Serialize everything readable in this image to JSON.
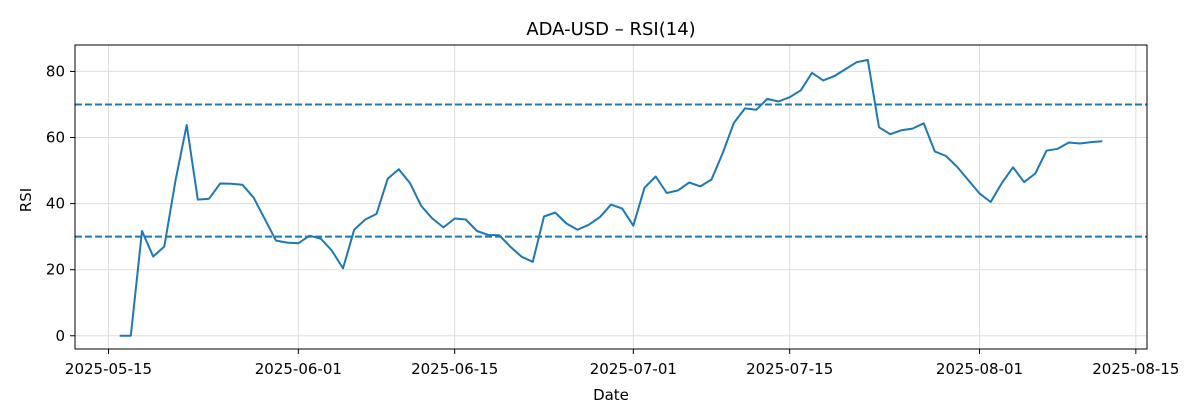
{
  "chart_data": {
    "type": "line",
    "title": "ADA-USD – RSI(14)",
    "xlabel": "Date",
    "ylabel": "RSI",
    "xlim": [
      "2025-05-12",
      "2025-08-16"
    ],
    "ylim": [
      -4,
      88
    ],
    "x_ticks": [
      "2025-05-15",
      "2025-06-01",
      "2025-06-15",
      "2025-07-01",
      "2025-07-15",
      "2025-08-01",
      "2025-08-15"
    ],
    "y_ticks": [
      0,
      20,
      40,
      60,
      80
    ],
    "grid": true,
    "reference_lines": [
      {
        "y": 70,
        "style": "dashed",
        "color": "#1f77b4"
      },
      {
        "y": 30,
        "style": "dashed",
        "color": "#1f77b4"
      }
    ],
    "series": [
      {
        "color": "#1f77b4",
        "x": [
          "2025-05-16",
          "2025-05-17",
          "2025-05-18",
          "2025-05-19",
          "2025-05-20",
          "2025-05-21",
          "2025-05-22",
          "2025-05-23",
          "2025-05-24",
          "2025-05-25",
          "2025-05-26",
          "2025-05-27",
          "2025-05-28",
          "2025-05-29",
          "2025-05-30",
          "2025-05-31",
          "2025-06-01",
          "2025-06-02",
          "2025-06-03",
          "2025-06-04",
          "2025-06-05",
          "2025-06-06",
          "2025-06-07",
          "2025-06-08",
          "2025-06-09",
          "2025-06-10",
          "2025-06-11",
          "2025-06-12",
          "2025-06-13",
          "2025-06-14",
          "2025-06-15",
          "2025-06-16",
          "2025-06-17",
          "2025-06-18",
          "2025-06-19",
          "2025-06-20",
          "2025-06-21",
          "2025-06-22",
          "2025-06-23",
          "2025-06-24",
          "2025-06-25",
          "2025-06-26",
          "2025-06-27",
          "2025-06-28",
          "2025-06-29",
          "2025-06-30",
          "2025-07-01",
          "2025-07-02",
          "2025-07-03",
          "2025-07-04",
          "2025-07-05",
          "2025-07-06",
          "2025-07-07",
          "2025-07-08",
          "2025-07-09",
          "2025-07-10",
          "2025-07-11",
          "2025-07-12",
          "2025-07-13",
          "2025-07-14",
          "2025-07-15",
          "2025-07-16",
          "2025-07-17",
          "2025-07-18",
          "2025-07-19",
          "2025-07-20",
          "2025-07-21",
          "2025-07-22",
          "2025-07-23",
          "2025-07-24",
          "2025-07-25",
          "2025-07-26",
          "2025-07-27",
          "2025-07-28",
          "2025-07-29",
          "2025-07-30",
          "2025-07-31",
          "2025-08-01",
          "2025-08-02",
          "2025-08-03",
          "2025-08-04",
          "2025-08-05",
          "2025-08-06",
          "2025-08-07",
          "2025-08-08",
          "2025-08-09",
          "2025-08-10",
          "2025-08-11",
          "2025-08-12"
        ],
        "values": [
          0,
          0,
          31.7,
          24.0,
          27.0,
          47.0,
          63.8,
          41.2,
          41.5,
          46.1,
          46.0,
          45.7,
          41.8,
          35.3,
          28.8,
          28.2,
          28.0,
          30.3,
          29.4,
          25.8,
          20.4,
          32.1,
          35.2,
          36.9,
          47.5,
          50.4,
          46.2,
          39.3,
          35.5,
          32.8,
          35.5,
          35.2,
          31.7,
          30.5,
          30.4,
          26.9,
          23.9,
          22.4,
          36.1,
          37.3,
          34.0,
          32.1,
          33.6,
          35.9,
          39.7,
          38.5,
          33.3,
          44.8,
          48.2,
          43.2,
          44.0,
          46.4,
          45.2,
          47.3,
          55.3,
          64.4,
          68.8,
          68.4,
          71.7,
          70.9,
          72.2,
          74.3,
          79.6,
          77.3,
          78.6,
          80.7,
          82.8,
          83.5,
          63.1,
          61.0,
          62.2,
          62.7,
          64.3,
          55.8,
          54.4,
          51.1,
          47.1,
          43.1,
          40.5,
          46.2,
          51.0,
          46.5,
          49.1,
          56.0,
          56.6,
          58.5,
          58.2,
          58.6,
          58.9
        ]
      }
    ]
  }
}
